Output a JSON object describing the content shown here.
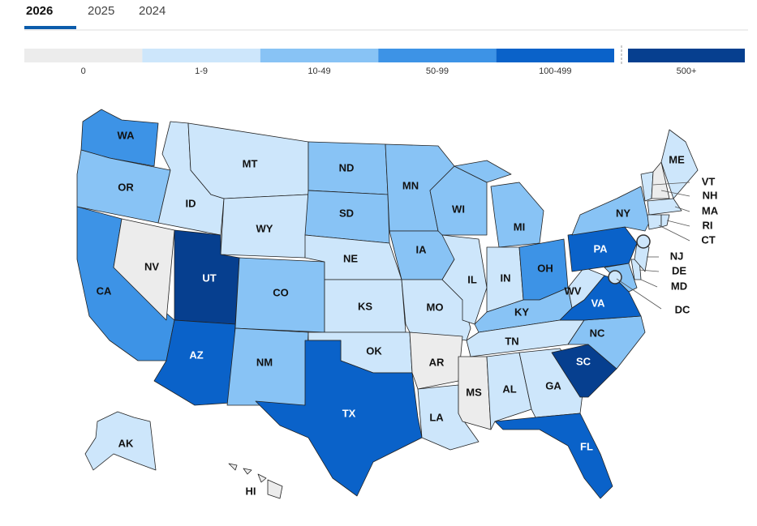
{
  "tabs": {
    "items": [
      "2026",
      "2025",
      "2024"
    ],
    "active": "2026"
  },
  "legend": {
    "bins": [
      {
        "label": "0",
        "color": "#ececec"
      },
      {
        "label": "1-9",
        "color": "#cde6fb"
      },
      {
        "label": "10-49",
        "color": "#88c3f5"
      },
      {
        "label": "50-99",
        "color": "#3d93e6"
      },
      {
        "label": "100-499",
        "color": "#0a62c9"
      },
      {
        "label": "500+",
        "color": "#063f8f"
      }
    ]
  },
  "states": [
    {
      "label": "WA",
      "bin": "50-99"
    },
    {
      "label": "OR",
      "bin": "10-49"
    },
    {
      "label": "CA",
      "bin": "50-99"
    },
    {
      "label": "NV",
      "bin": "0"
    },
    {
      "label": "ID",
      "bin": "1-9"
    },
    {
      "label": "MT",
      "bin": "1-9"
    },
    {
      "label": "WY",
      "bin": "1-9"
    },
    {
      "label": "UT",
      "bin": "500+"
    },
    {
      "label": "AZ",
      "bin": "100-499"
    },
    {
      "label": "CO",
      "bin": "10-49"
    },
    {
      "label": "NM",
      "bin": "10-49"
    },
    {
      "label": "ND",
      "bin": "10-49"
    },
    {
      "label": "SD",
      "bin": "10-49"
    },
    {
      "label": "NE",
      "bin": "1-9"
    },
    {
      "label": "KS",
      "bin": "1-9"
    },
    {
      "label": "OK",
      "bin": "1-9"
    },
    {
      "label": "TX",
      "bin": "100-499"
    },
    {
      "label": "MN",
      "bin": "10-49"
    },
    {
      "label": "IA",
      "bin": "10-49"
    },
    {
      "label": "MO",
      "bin": "1-9"
    },
    {
      "label": "AR",
      "bin": "0"
    },
    {
      "label": "LA",
      "bin": "1-9"
    },
    {
      "label": "WI",
      "bin": "10-49"
    },
    {
      "label": "IL",
      "bin": "1-9"
    },
    {
      "label": "MS",
      "bin": "0"
    },
    {
      "label": "AL",
      "bin": "1-9"
    },
    {
      "label": "MI",
      "bin": "10-49"
    },
    {
      "label": "IN",
      "bin": "1-9"
    },
    {
      "label": "OH",
      "bin": "50-99"
    },
    {
      "label": "KY",
      "bin": "10-49"
    },
    {
      "label": "TN",
      "bin": "1-9"
    },
    {
      "label": "GA",
      "bin": "1-9"
    },
    {
      "label": "FL",
      "bin": "100-499"
    },
    {
      "label": "NC",
      "bin": "10-49"
    },
    {
      "label": "SC",
      "bin": "500+"
    },
    {
      "label": "VA",
      "bin": "100-499"
    },
    {
      "label": "WV",
      "bin": "1-9"
    },
    {
      "label": "PA",
      "bin": "100-499"
    },
    {
      "label": "MD",
      "bin": "10-49"
    },
    {
      "label": "DE",
      "bin": "1-9"
    },
    {
      "label": "NJ",
      "bin": "1-9"
    },
    {
      "label": "NY",
      "bin": "10-49"
    },
    {
      "label": "VT",
      "bin": "1-9"
    },
    {
      "label": "NH",
      "bin": "0"
    },
    {
      "label": "ME",
      "bin": "1-9"
    },
    {
      "label": "MA",
      "bin": "1-9"
    },
    {
      "label": "CT",
      "bin": "1-9"
    },
    {
      "label": "RI",
      "bin": "1-9"
    },
    {
      "label": "DC",
      "bin": "1-9"
    },
    {
      "label": "AK",
      "bin": "1-9"
    },
    {
      "label": "HI",
      "bin": "0"
    }
  ]
}
